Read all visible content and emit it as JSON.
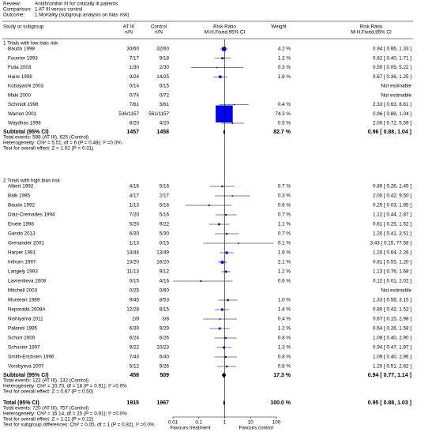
{
  "chart_data": {
    "type": "forest",
    "header": [
      {
        "label": "Review:",
        "text": "Antithrombin III for critically ill patients"
      },
      {
        "label": "Comparison:",
        "text": "1 AT III versus control"
      },
      {
        "label": "Outcome:",
        "text": "1 Mortality (subgroup analysis on bias risk)"
      }
    ],
    "columns": {
      "study": "Study or subgroup",
      "treatment": [
        "AT III",
        "n/N"
      ],
      "control": [
        "Control",
        "n/N"
      ],
      "plot": [
        "Risk Ratio",
        "M-H,Fixed,95% CI"
      ],
      "weight": "Weight",
      "effect": [
        "Risk Ratio",
        "M-H,Fixed,95% CI"
      ]
    },
    "groups": [
      {
        "title": "1 Trials with low bias risk",
        "studies": [
          {
            "name": "Baudo 1998",
            "tx": "30/60",
            "ctrl": "32/60",
            "weight": 4.2,
            "weight_label": "4.2 %",
            "rr": 0.94,
            "ci": [
              0.66,
              1.33
            ],
            "rr_label": "0.94 [ 0.66, 1.33 ]"
          },
          {
            "name": "Fourrier 1993",
            "tx": "7/17",
            "ctrl": "9/18",
            "weight": 1.2,
            "weight_label": "1.2 %",
            "rr": 0.82,
            "ci": [
              0.4,
              1.71
            ],
            "rr_label": "0.82 [ 0.40, 1.71 ]"
          },
          {
            "name": "Fulia 2003",
            "tx": "1/30",
            "ctrl": "2/30",
            "weight": 0.3,
            "weight_label": "0.3 %",
            "rr": 0.5,
            "ci": [
              0.05,
              5.22
            ],
            "rr_label": "0.50 [ 0.05, 5.22 ]"
          },
          {
            "name": "Haire 1998",
            "tx": "9/24",
            "ctrl": "14/25",
            "weight": 1.8,
            "weight_label": "1.8 %",
            "rr": 0.67,
            "ci": [
              0.36,
              1.25
            ],
            "rr_label": "0.67 [ 0.36, 1.25 ]"
          },
          {
            "name": "Kobayashi 2003",
            "tx": "0/14",
            "ctrl": "0/15",
            "weight": null,
            "rr": null,
            "ci": null,
            "rr_label": "Not estimable"
          },
          {
            "name": "Maki 2000",
            "tx": "0/74",
            "ctrl": "0/72",
            "weight": null,
            "rr": null,
            "ci": null,
            "rr_label": "Not estimable"
          },
          {
            "name": "Schmidt 1998",
            "tx": "7/61",
            "ctrl": "3/61",
            "weight": 0.4,
            "weight_label": "0.4 %",
            "rr": 2.33,
            "ci": [
              0.63,
              8.61
            ],
            "rr_label": "2.33 [ 0.63, 8.61 ]"
          },
          {
            "name": "Warren 2001",
            "tx": "536/1157",
            "ctrl": "561/1157",
            "weight": 74.3,
            "weight_label": "74.3 %",
            "rr": 0.96,
            "ci": [
              0.88,
              1.04
            ],
            "rr_label": "0.96 [ 0.88, 1.04 ]"
          },
          {
            "name": "Waydhas 1998",
            "tx": "8/20",
            "ctrl": "4/20",
            "weight": 0.5,
            "weight_label": "0.5 %",
            "rr": 2.0,
            "ci": [
              0.72,
              5.59
            ],
            "rr_label": "2.00 [ 0.72, 5.59 ]"
          }
        ],
        "subtotal": {
          "name": "Subtotal (95% CI)",
          "tx": 1457,
          "ctrl": 1458,
          "weight": 82.7,
          "weight_label": "82.7 %",
          "rr": 0.96,
          "ci": [
            0.88,
            1.04
          ],
          "rr_label": "0.96 [ 0.88, 1.04 ]"
        },
        "notes": [
          "Total events: 598 (AT III), 625 (Control)",
          "Heterogeneity: Chi² = 5.51, df = 6 (P = 0.48); I² =0.0%",
          "Test for overall effect: Z = 1.02 (P = 0.31)"
        ]
      },
      {
        "title": "2 Trials with high bias risk",
        "studies": [
          {
            "name": "Albert 1992",
            "tx": "4/16",
            "ctrl": "5/16",
            "weight": 0.7,
            "weight_label": "0.7 %",
            "rr": 0.8,
            "ci": [
              0.26,
              2.45
            ],
            "rr_label": "0.80 [ 0.26, 2.45 ]"
          },
          {
            "name": "Balk 1995",
            "tx": "4/17",
            "ctrl": "2/17",
            "weight": 0.3,
            "weight_label": "0.3 %",
            "rr": 2.0,
            "ci": [
              0.42,
              9.5
            ],
            "rr_label": "2.00 [ 0.42, 9.50 ]"
          },
          {
            "name": "Baudo 1992",
            "tx": "1/13",
            "ctrl": "5/16",
            "weight": 0.6,
            "weight_label": "0.6 %",
            "rr": 0.25,
            "ci": [
              0.03,
              1.85
            ],
            "rr_label": "0.25 [ 0.03, 1.85 ]"
          },
          {
            "name": "Diaz-Cremades 1994",
            "tx": "7/20",
            "ctrl": "5/16",
            "weight": 0.7,
            "weight_label": "0.7 %",
            "rr": 1.12,
            "ci": [
              0.44,
              2.87
            ],
            "rr_label": "1.12 [ 0.44, 2.87 ]"
          },
          {
            "name": "Eisele 1998",
            "tx": "5/20",
            "ctrl": "9/22",
            "weight": 1.1,
            "weight_label": "1.1 %",
            "rr": 0.61,
            "ci": [
              0.25,
              1.52
            ],
            "rr_label": "0.61 [ 0.25, 1.52 ]"
          },
          {
            "name": "Gando 2013",
            "tx": "6/30",
            "ctrl": "5/30",
            "weight": 0.7,
            "weight_label": "0.7 %",
            "rr": 1.2,
            "ci": [
              0.41,
              3.51
            ],
            "rr_label": "1.20 [ 0.41, 3.51 ]"
          },
          {
            "name": "Grenander 2001",
            "tx": "1/13",
            "ctrl": "0/15",
            "weight": 0.1,
            "weight_label": "0.1 %",
            "rr": 3.43,
            "ci": [
              0.15,
              77.58
            ],
            "rr_label": "3.43 [ 0.15, 77.58 ]"
          },
          {
            "name": "Harper 1991",
            "tx": "14/44",
            "ctrl": "13/49",
            "weight": 1.6,
            "weight_label": "1.6 %",
            "rr": 1.2,
            "ci": [
              0.64,
              2.26
            ],
            "rr_label": "1.20 [ 0.64, 2.26 ]"
          },
          {
            "name": "Inthorn 1997",
            "tx": "13/20",
            "ctrl": "16/20",
            "weight": 2.1,
            "weight_label": "2.1 %",
            "rr": 0.81,
            "ci": [
              0.55,
              1.2
            ],
            "rr_label": "0.81 [ 0.55, 1.20 ]"
          },
          {
            "name": "Langely 1993",
            "tx": "11/13",
            "ctrl": "9/12",
            "weight": 1.2,
            "weight_label": "1.2 %",
            "rr": 1.13,
            "ci": [
              0.76,
              1.68
            ],
            "rr_label": "1.13 [ 0.76, 1.68 ]"
          },
          {
            "name": "Lavrentieva 2008",
            "tx": "0/15",
            "ctrl": "4/16",
            "weight": 0.6,
            "weight_label": "0.6 %",
            "rr": 0.12,
            "ci": [
              0.01,
              2.02
            ],
            "rr_label": "0.12 [ 0.01, 2.02 ]"
          },
          {
            "name": "Mitchell 2003",
            "tx": "0/25",
            "ctrl": "0/60",
            "weight": null,
            "rr": null,
            "ci": null,
            "rr_label": "Not estimable"
          },
          {
            "name": "Muntean 1989",
            "tx": "9/45",
            "ctrl": "8/53",
            "weight": 1.0,
            "weight_label": "1.0 %",
            "rr": 1.33,
            "ci": [
              0.56,
              3.15
            ],
            "rr_label": "1.33 [ 0.56, 3.15 ]"
          },
          {
            "name": "Neporada 2008A",
            "tx": "12/28",
            "ctrl": "8/15",
            "weight": 1.4,
            "weight_label": "1.4 %",
            "rr": 0.8,
            "ci": [
              0.42,
              1.52
            ],
            "rr_label": "0.80 [ 0.42, 1.52 ]"
          },
          {
            "name": "Nishiyama 2011",
            "tx": "2/8",
            "ctrl": "3/8",
            "weight": 0.4,
            "weight_label": "0.4 %",
            "rr": 0.67,
            "ci": [
              0.15,
              2.98
            ],
            "rr_label": "0.67 [ 0.15, 2.98 ]"
          },
          {
            "name": "Palareti 1995",
            "tx": "6/30",
            "ctrl": "9/29",
            "weight": 1.2,
            "weight_label": "1.2 %",
            "rr": 0.64,
            "ci": [
              0.26,
              1.58
            ],
            "rr_label": "0.64 [ 0.26, 1.58 ]"
          },
          {
            "name": "Schorr 2000",
            "tx": "6/24",
            "ctrl": "6/26",
            "weight": 0.8,
            "weight_label": "0.8 %",
            "rr": 1.08,
            "ci": [
              0.4,
              2.9
            ],
            "rr_label": "1.08 [ 0.40, 2.90 ]"
          },
          {
            "name": "Schuster 1997",
            "tx": "9/22",
            "ctrl": "10/23",
            "weight": 1.3,
            "weight_label": "1.3 %",
            "rr": 0.94,
            "ci": [
              0.47,
              1.87
            ],
            "rr_label": "0.94 [ 0.47, 1.87 ]"
          },
          {
            "name": "Smith-Erichsen 1996",
            "tx": "7/43",
            "ctrl": "6/40",
            "weight": 0.8,
            "weight_label": "0.8 %",
            "rr": 1.09,
            "ci": [
              0.4,
              2.96
            ],
            "rr_label": "1.09 [ 0.40, 2.96 ]"
          },
          {
            "name": "Vorobyeva 2007",
            "tx": "5/12",
            "ctrl": "9/26",
            "weight": 0.8,
            "weight_label": "0.8 %",
            "rr": 1.2,
            "ci": [
              0.51,
              2.82
            ],
            "rr_label": "1.20 [ 0.51, 2.82 ]"
          }
        ],
        "subtotal": {
          "name": "Subtotal (95% CI)",
          "tx": 458,
          "ctrl": 509,
          "weight": 17.3,
          "weight_label": "17.3 %",
          "rr": 0.94,
          "ci": [
            0.77,
            1.14
          ],
          "rr_label": "0.94 [ 0.77, 1.14 ]"
        },
        "notes": [
          "Total events: 122 (AT III), 132 (Control)",
          "Heterogeneity: Chi² = 10.70, df = 18 (P = 0.91); I² =0.0%",
          "Test for overall effect: Z = 0.67 (P = 0.50)"
        ]
      }
    ],
    "total": {
      "name": "Total (95% CI)",
      "tx": 1915,
      "ctrl": 1967,
      "weight": 100.0,
      "weight_label": "100.0 %",
      "rr": 0.95,
      "ci": [
        0.88,
        1.03
      ],
      "rr_label": "0.95 [ 0.88, 1.03 ]"
    },
    "total_notes": [
      "Total events: 720 (AT III), 757 (Control)",
      "Heterogeneity: Chi² = 16.14, df = 25 (P = 0.91); I² =0.0%",
      "Test for overall effect: Z = 1.21 (P = 0.22)",
      "Test for subgroup differences: Chi² = 0.05, df = 1 (P = 0.82), I² =0.0%"
    ],
    "xlim": [
      0.01,
      100
    ],
    "xticks": [
      0.01,
      0.1,
      1,
      10,
      100
    ],
    "log_x": true,
    "x_labels": [
      "Favours treatment",
      "Favours control"
    ],
    "square_color": "#0000ff",
    "line_color": "#000000"
  }
}
